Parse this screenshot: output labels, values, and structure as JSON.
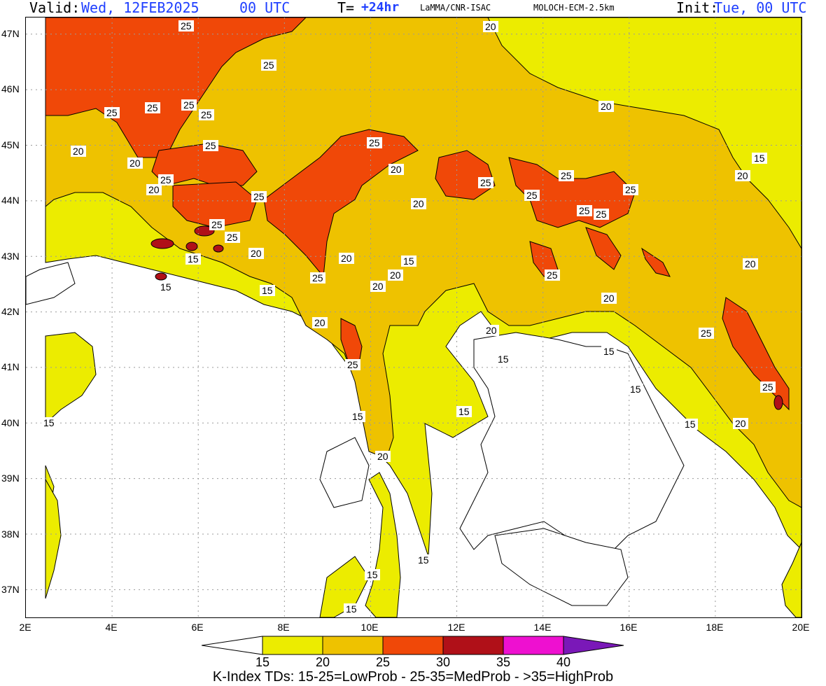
{
  "header": {
    "valid_label": "Valid:",
    "valid_date": "Wed, 12FEB2025",
    "valid_time": "00 UTC",
    "t_label": "T=",
    "t_value": "+24hr",
    "producer": "LaMMA/CNR-ISAC",
    "model": "MOLOCH-ECM-2.5km",
    "init_label": "Init:",
    "init_value": "Tue, 00 UTC",
    "accent_color": "#1f3fff"
  },
  "axes": {
    "lat_ticks": [
      "47N",
      "46N",
      "45N",
      "44N",
      "43N",
      "42N",
      "41N",
      "40N",
      "39N",
      "38N",
      "37N"
    ],
    "lon_ticks": [
      "2E",
      "4E",
      "6E",
      "8E",
      "10E",
      "12E",
      "14E",
      "16E",
      "18E",
      "20E"
    ],
    "lat_range": [
      36.5,
      47.3
    ],
    "lon_range": [
      2,
      20
    ],
    "grid": "dotted"
  },
  "colorbar": {
    "ticks": [
      "15",
      "20",
      "25",
      "30",
      "35",
      "40"
    ],
    "colors": [
      "#ffffff",
      "#ecec00",
      "#eec200",
      "#f04808",
      "#b01018",
      "#ee10d0",
      "#7a18b8"
    ]
  },
  "caption": "K-Index TDs: 15-25=LowProb - 25-35=MedProb - >35=HighProb",
  "map_labels": [
    "25",
    "20",
    "15"
  ]
}
